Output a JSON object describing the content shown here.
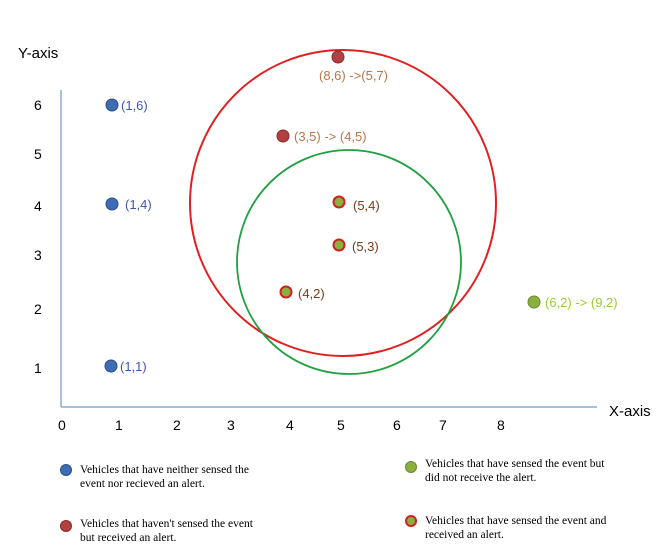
{
  "axes": {
    "x_title": "X-axis",
    "y_title": "Y-axis",
    "x_ticks": [
      "0",
      "1",
      "2",
      "3",
      "4",
      "5",
      "6",
      "7",
      "8"
    ],
    "y_ticks": [
      "1",
      "2",
      "3",
      "4",
      "5",
      "6"
    ]
  },
  "colors": {
    "blue": "#3f6db3",
    "red": "#b34040",
    "green": "#8ab040",
    "big_circle": "#e02020",
    "small_circle": "#20a040"
  },
  "points": [
    {
      "id": "p16",
      "label": "(1,6)",
      "type": "blue",
      "x": 1,
      "y": 6
    },
    {
      "id": "p14",
      "label": "(1,4)",
      "type": "blue",
      "x": 1,
      "y": 4
    },
    {
      "id": "p11",
      "label": "(1,1)",
      "type": "blue",
      "x": 1,
      "y": 1
    },
    {
      "id": "p86",
      "label": "(8,6) ->(5,7)",
      "type": "red",
      "x": 5,
      "y": 7
    },
    {
      "id": "p35",
      "label": "(3,5) -> (4,5)",
      "type": "red",
      "x": 4,
      "y": 5
    },
    {
      "id": "p54",
      "label": "(5,4)",
      "type": "redgreen",
      "x": 5,
      "y": 4
    },
    {
      "id": "p53",
      "label": "(5,3)",
      "type": "redgreen",
      "x": 5,
      "y": 3
    },
    {
      "id": "p42",
      "label": "(4,2)",
      "type": "redgreen",
      "x": 4,
      "y": 2
    },
    {
      "id": "p62",
      "label": "(6,2) -> (9,2)",
      "type": "green",
      "x": 9,
      "y": 2
    }
  ],
  "legend": [
    {
      "type": "blue",
      "text": "Vehicles that have neither sensed the event nor recieved an alert."
    },
    {
      "type": "green",
      "text": "Vehicles that have sensed the event but did not receive the alert."
    },
    {
      "type": "red",
      "text": "Vehicles that haven't sensed the event but received an alert."
    },
    {
      "type": "redgreen",
      "text": "Vehicles that have sensed the event and received an alert."
    }
  ]
}
